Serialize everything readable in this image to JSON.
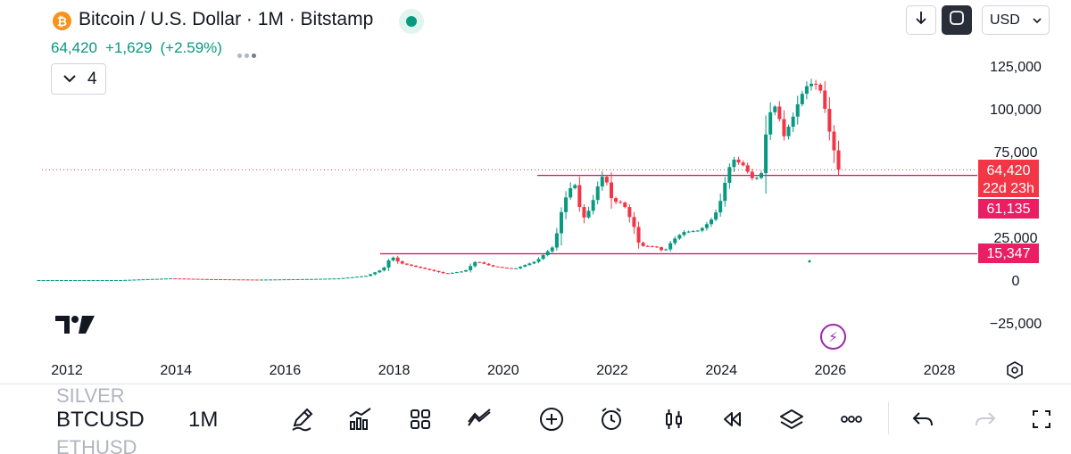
{
  "header": {
    "title": "Bitcoin / U.S. Dollar · 1M · Bitstamp",
    "logo_glyph": "₿",
    "price": "64,420",
    "change": "+1,629",
    "change_pct": "(+2.59%)",
    "collapse_count": "4",
    "currency": "USD",
    "accent_up": "#089981",
    "accent_down": "#f23645",
    "logo_color": "#f7931a"
  },
  "toolbar_icons": [
    "download-icon",
    "fullscreen-icon"
  ],
  "price_axis": {
    "ticks": [
      "125,000",
      "100,000",
      "75,000",
      "25,000",
      "0",
      "−25,000"
    ],
    "labels": {
      "last_price": "64,420",
      "countdown": "22d 23h",
      "level_high": "61,135",
      "level_low": "15,347"
    }
  },
  "time_axis": {
    "ticks": [
      "2012",
      "2014",
      "2016",
      "2018",
      "2020",
      "2022",
      "2024",
      "2026",
      "2028"
    ]
  },
  "horizontal_levels": [
    {
      "value": 61135,
      "color": "#c2185b"
    },
    {
      "value": 15347,
      "color": "#c2185b"
    }
  ],
  "chart_data": {
    "type": "candlestick",
    "symbol": "BTCUSD",
    "interval": "1M",
    "y_range": [
      -25000,
      125000
    ],
    "x_range": [
      2012,
      2028
    ],
    "last_price": 64420,
    "points": [
      {
        "t": 2012.0,
        "p": 5
      },
      {
        "t": 2013.0,
        "p": 13
      },
      {
        "t": 2013.9,
        "p": 1000
      },
      {
        "t": 2014.5,
        "p": 600
      },
      {
        "t": 2015.5,
        "p": 250
      },
      {
        "t": 2016.5,
        "p": 650
      },
      {
        "t": 2017.0,
        "p": 1000
      },
      {
        "t": 2017.5,
        "p": 2500
      },
      {
        "t": 2017.8,
        "p": 6500
      },
      {
        "t": 2017.95,
        "p": 14000
      },
      {
        "t": 2018.1,
        "p": 10000
      },
      {
        "t": 2018.5,
        "p": 7000
      },
      {
        "t": 2018.95,
        "p": 3700
      },
      {
        "t": 2019.3,
        "p": 5300
      },
      {
        "t": 2019.5,
        "p": 11000
      },
      {
        "t": 2019.8,
        "p": 8000
      },
      {
        "t": 2020.2,
        "p": 6500
      },
      {
        "t": 2020.6,
        "p": 11000
      },
      {
        "t": 2020.9,
        "p": 19000
      },
      {
        "t": 2021.0,
        "p": 29000
      },
      {
        "t": 2021.1,
        "p": 45000
      },
      {
        "t": 2021.3,
        "p": 58000
      },
      {
        "t": 2021.45,
        "p": 35000
      },
      {
        "t": 2021.6,
        "p": 42000
      },
      {
        "t": 2021.8,
        "p": 61000
      },
      {
        "t": 2021.9,
        "p": 57000
      },
      {
        "t": 2022.0,
        "p": 46000
      },
      {
        "t": 2022.2,
        "p": 45000
      },
      {
        "t": 2022.4,
        "p": 31000
      },
      {
        "t": 2022.5,
        "p": 20000
      },
      {
        "t": 2022.8,
        "p": 19500
      },
      {
        "t": 2022.95,
        "p": 16500
      },
      {
        "t": 2023.1,
        "p": 23000
      },
      {
        "t": 2023.3,
        "p": 28000
      },
      {
        "t": 2023.6,
        "p": 29000
      },
      {
        "t": 2023.8,
        "p": 34500
      },
      {
        "t": 2023.95,
        "p": 42000
      },
      {
        "t": 2024.1,
        "p": 61000
      },
      {
        "t": 2024.2,
        "p": 71000
      },
      {
        "t": 2024.4,
        "p": 67000
      },
      {
        "t": 2024.6,
        "p": 58000
      },
      {
        "t": 2024.75,
        "p": 63000
      },
      {
        "t": 2024.85,
        "p": 96000
      },
      {
        "t": 2025.0,
        "p": 102000
      },
      {
        "t": 2025.15,
        "p": 84000
      },
      {
        "t": 2025.3,
        "p": 94000
      },
      {
        "t": 2025.45,
        "p": 107000
      },
      {
        "t": 2025.6,
        "p": 115000
      },
      {
        "t": 2025.75,
        "p": 114000
      },
      {
        "t": 2025.85,
        "p": 109000
      },
      {
        "t": 2025.95,
        "p": 91000
      },
      {
        "t": 2026.05,
        "p": 78000
      },
      {
        "t": 2026.15,
        "p": 64420
      }
    ]
  },
  "bottom_bar": {
    "symbol_above": "SILVER",
    "symbol": "BTCUSD",
    "symbol_below": "ETHUSD",
    "interval": "1M"
  }
}
